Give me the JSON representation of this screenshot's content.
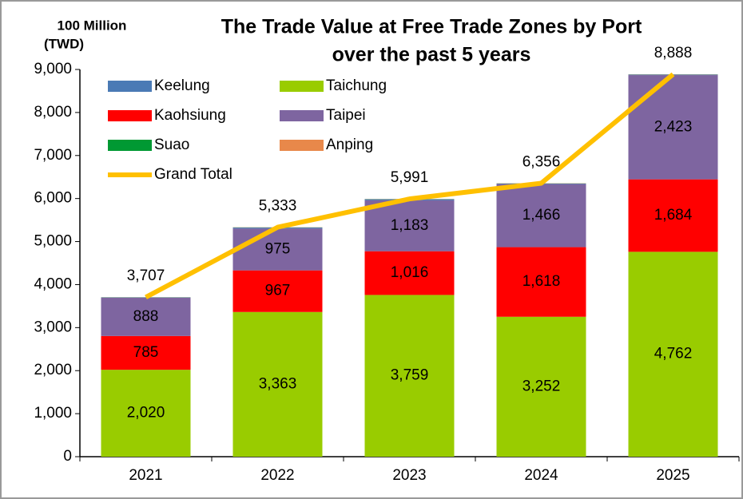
{
  "chart_data": {
    "type": "stacked_bar_line",
    "title": [
      "The Trade Value at Free Trade Zones by Port",
      "over the past 5 years"
    ],
    "y_label": [
      "100 Million",
      "(TWD)"
    ],
    "categories": [
      "2021",
      "2022",
      "2023",
      "2024",
      "2025"
    ],
    "series": [
      {
        "name": "Keelung",
        "color": "#4a7ab5",
        "values": [
          8,
          20,
          25,
          12,
          11
        ]
      },
      {
        "name": "Taichung",
        "color": "#99cc00",
        "values": [
          2020,
          3363,
          3759,
          3252,
          4762
        ],
        "value_labels": [
          "2,020",
          "3,363",
          "3,759",
          "3,252",
          "4,762"
        ]
      },
      {
        "name": "Kaohsiung",
        "color": "#ff0000",
        "values": [
          785,
          967,
          1016,
          1618,
          1684
        ],
        "value_labels": [
          "785",
          "967",
          "1,016",
          "1,618",
          "1,684"
        ]
      },
      {
        "name": "Taipei",
        "color": "#7e65a0",
        "values": [
          888,
          975,
          1183,
          1466,
          2423
        ],
        "value_labels": [
          "888",
          "975",
          "1,183",
          "1,466",
          "2,423"
        ]
      },
      {
        "name": "Suao",
        "color": "#009933",
        "values": [
          3,
          4,
          4,
          4,
          4
        ]
      },
      {
        "name": "Anping",
        "color": "#e8884a",
        "values": [
          3,
          4,
          4,
          4,
          4
        ]
      },
      {
        "name": "Grand Total",
        "color": "#ffc000",
        "type": "line",
        "values": [
          3707,
          5333,
          5991,
          6356,
          8888
        ],
        "value_labels": [
          "3,707",
          "5,333",
          "5,991",
          "6,356",
          "8,888"
        ]
      }
    ],
    "ylim": [
      0,
      9000
    ],
    "yticks": [
      0,
      {
        "value": 1000,
        "label": "1,000"
      },
      {
        "value": 2000,
        "label": "2,000"
      },
      {
        "value": 3000,
        "label": "3,000"
      },
      {
        "value": 4000,
        "label": "4,000"
      },
      {
        "value": 5000,
        "label": "5,000"
      },
      {
        "value": 6000,
        "label": "6,000"
      },
      {
        "value": 7000,
        "label": "7,000"
      },
      {
        "value": 8000,
        "label": "8,000"
      },
      {
        "value": 9000,
        "label": "9,000"
      }
    ],
    "grid": false,
    "legend": "upper left"
  }
}
